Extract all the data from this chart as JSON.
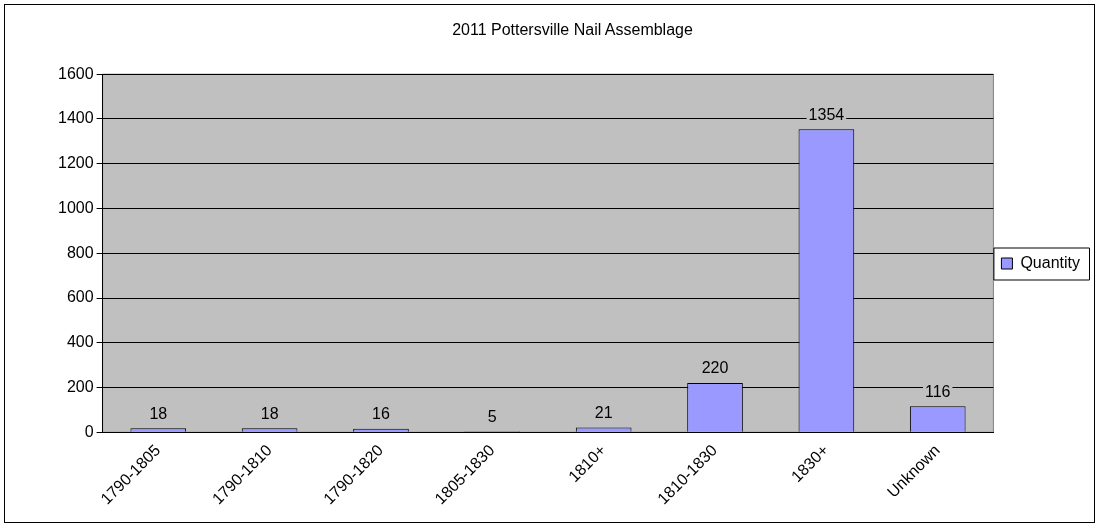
{
  "chart_data": {
    "type": "bar",
    "title": "2011 Pottersville Nail Assemblage",
    "categories": [
      "1790-1805",
      "1790-1810",
      "1790-1820",
      "1805-1830",
      "1810+",
      "1810-1830",
      "1830+",
      "Unknown"
    ],
    "series": [
      {
        "name": "Quantity",
        "color": "#9999ff",
        "values": [
          18,
          18,
          16,
          5,
          21,
          220,
          1354,
          116
        ]
      }
    ],
    "ylim": [
      0,
      1600
    ],
    "yticks": [
      0,
      200,
      400,
      600,
      800,
      1000,
      1200,
      1400,
      1600
    ],
    "grid": "y",
    "legend": "right",
    "data_labels": true
  }
}
